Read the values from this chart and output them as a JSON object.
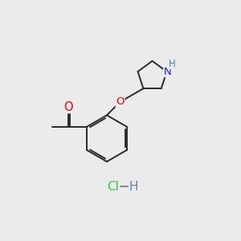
{
  "bg_color": "#ebebeb",
  "bond_color": "#2a2a2a",
  "bond_width": 1.4,
  "atom_colors": {
    "O": "#ee0000",
    "N": "#2222cc",
    "H_n": "#448899",
    "H_cl": "#6688aa",
    "Cl": "#33cc33"
  },
  "font_size": 9.5,
  "small_font": 8.5,
  "hcl_font_size": 11
}
